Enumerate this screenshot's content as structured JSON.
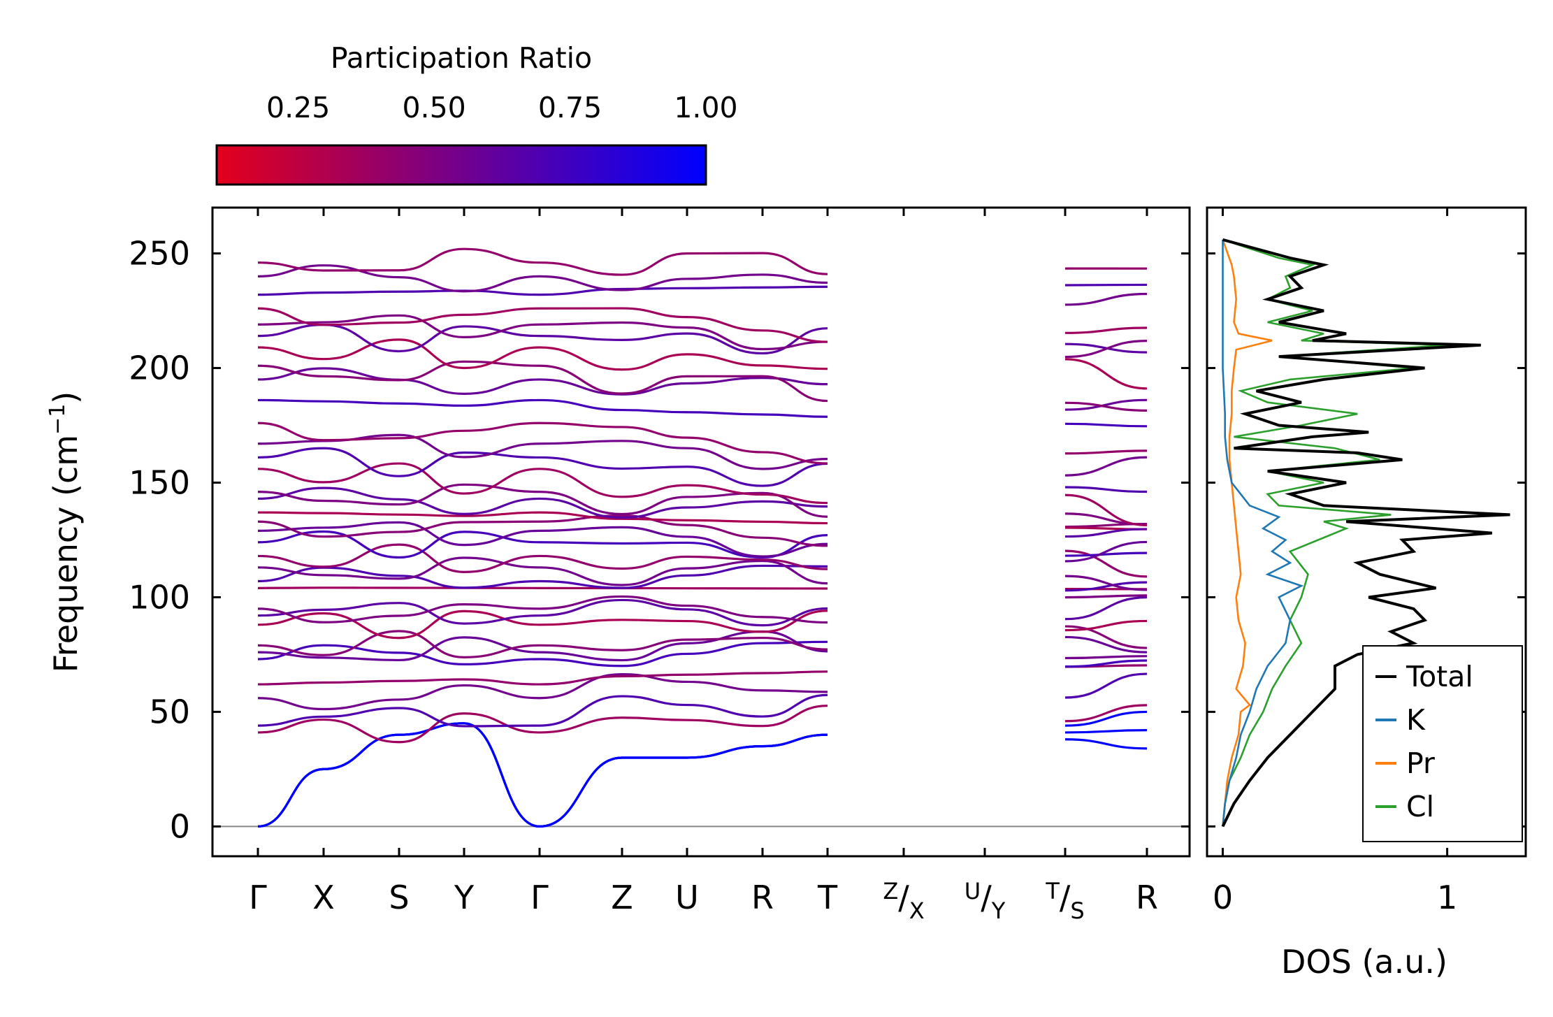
{
  "chart_data": [
    {
      "type": "line",
      "subtype": "phonon-band-structure",
      "ylabel": "Frequency (cm$^{-1}$)",
      "ylabel_text": "Frequency (cm",
      "ylabel_unit_sup": "−1",
      "ylabel_close": ")",
      "ylim": [
        -13,
        270
      ],
      "yticks": [
        0,
        50,
        100,
        150,
        200,
        250
      ],
      "ytick_labels": [
        "0",
        "50",
        "100",
        "150",
        "200",
        "250"
      ],
      "path_labels": [
        {
          "main": "Γ"
        },
        {
          "main": "X"
        },
        {
          "main": "S"
        },
        {
          "main": "Y"
        },
        {
          "main": "Γ"
        },
        {
          "main": "Z"
        },
        {
          "main": "U"
        },
        {
          "main": "R"
        },
        {
          "main": "T"
        },
        {
          "sup": "Z",
          "slash": "/",
          "sub": "X"
        },
        {
          "sup": "U",
          "slash": "/",
          "sub": "Y"
        },
        {
          "sup": "T",
          "slash": "/",
          "sub": "S"
        },
        {
          "main": "R"
        }
      ],
      "segment_breaks_after": [
        9,
        10,
        11
      ],
      "colorbar": {
        "title": "Participation Ratio",
        "min": 0.1,
        "max": 1.0,
        "ticks": [
          "0.25",
          "0.50",
          "0.75",
          "1.00"
        ],
        "tick_values": [
          0.25,
          0.5,
          0.75,
          1.0
        ],
        "colormap": [
          "#e3001b",
          "#0000ff"
        ]
      },
      "band_frequencies_at_gamma": [
        0,
        0,
        0,
        41,
        44,
        56,
        62,
        73,
        76,
        79,
        88,
        92,
        95,
        104,
        107,
        113,
        118,
        124,
        129,
        133,
        137,
        143,
        146,
        156,
        161,
        167,
        176,
        186,
        195,
        201,
        209,
        214,
        219,
        226,
        232,
        240,
        246
      ],
      "band_frequencies_at_R": [
        34,
        51,
        61,
        69,
        76,
        82,
        89,
        95,
        101,
        109,
        114,
        120,
        126,
        131,
        137,
        148,
        158,
        170,
        186,
        197,
        210,
        212,
        231,
        247
      ]
    },
    {
      "type": "line",
      "subtype": "density-of-states",
      "xlabel": "DOS (a.u.)",
      "xlim": [
        -0.07,
        1.35
      ],
      "xticks": [
        0,
        1
      ],
      "xtick_labels": [
        "0",
        "1"
      ],
      "ylim": [
        -13,
        270
      ],
      "series": [
        {
          "name": "Total",
          "color": "#000000",
          "y": [
            0,
            10,
            20,
            30,
            40,
            50,
            60,
            70,
            75,
            80,
            85,
            90,
            95,
            100,
            104,
            110,
            115,
            120,
            125,
            128,
            133,
            136,
            140,
            145,
            150,
            155,
            160,
            163,
            165,
            170,
            172,
            175,
            180,
            185,
            190,
            195,
            200,
            205,
            210,
            212,
            215,
            220,
            225,
            230,
            235,
            240,
            245,
            248,
            256
          ],
          "x": [
            0.0,
            0.05,
            0.12,
            0.2,
            0.3,
            0.4,
            0.5,
            0.5,
            0.6,
            0.85,
            0.75,
            0.9,
            0.85,
            0.65,
            0.95,
            0.7,
            0.6,
            0.85,
            0.8,
            1.2,
            0.55,
            1.28,
            0.45,
            0.3,
            0.55,
            0.2,
            0.8,
            0.6,
            0.05,
            0.4,
            0.65,
            0.25,
            0.1,
            0.35,
            0.15,
            0.45,
            0.9,
            0.25,
            1.15,
            0.4,
            0.55,
            0.25,
            0.45,
            0.2,
            0.35,
            0.3,
            0.45,
            0.3,
            0.0
          ]
        },
        {
          "name": "K",
          "color": "#1f77b4",
          "y": [
            0,
            10,
            20,
            30,
            40,
            50,
            60,
            70,
            80,
            90,
            100,
            105,
            110,
            115,
            120,
            125,
            130,
            135,
            140,
            145,
            150,
            160,
            170,
            180,
            200,
            220,
            240,
            256
          ],
          "x": [
            0.0,
            0.01,
            0.03,
            0.06,
            0.08,
            0.12,
            0.15,
            0.2,
            0.28,
            0.3,
            0.25,
            0.35,
            0.2,
            0.3,
            0.22,
            0.28,
            0.18,
            0.25,
            0.12,
            0.08,
            0.04,
            0.02,
            0.01,
            0.01,
            0.0,
            0.0,
            0.0,
            0.0
          ]
        },
        {
          "name": "Pr",
          "color": "#ff7f0e",
          "y": [
            0,
            20,
            30,
            40,
            50,
            53,
            60,
            70,
            80,
            90,
            100,
            110,
            120,
            130,
            140,
            150,
            160,
            170,
            180,
            190,
            200,
            208,
            212,
            215,
            220,
            230,
            240,
            245,
            256
          ],
          "x": [
            0.0,
            0.02,
            0.04,
            0.07,
            0.08,
            0.12,
            0.06,
            0.09,
            0.1,
            0.07,
            0.06,
            0.08,
            0.07,
            0.06,
            0.05,
            0.04,
            0.03,
            0.03,
            0.04,
            0.04,
            0.05,
            0.06,
            0.22,
            0.07,
            0.05,
            0.06,
            0.05,
            0.04,
            0.0
          ]
        },
        {
          "name": "Cl",
          "color": "#2ca02c",
          "y": [
            0,
            10,
            20,
            30,
            40,
            50,
            60,
            70,
            80,
            90,
            100,
            110,
            120,
            130,
            133,
            136,
            140,
            145,
            150,
            155,
            160,
            165,
            170,
            175,
            180,
            185,
            190,
            195,
            200,
            205,
            210,
            212,
            215,
            220,
            225,
            230,
            235,
            240,
            245,
            248,
            256
          ],
          "x": [
            0.0,
            0.01,
            0.03,
            0.08,
            0.12,
            0.18,
            0.22,
            0.28,
            0.35,
            0.3,
            0.35,
            0.38,
            0.3,
            0.55,
            0.45,
            0.75,
            0.25,
            0.2,
            0.45,
            0.2,
            0.7,
            0.5,
            0.05,
            0.35,
            0.6,
            0.2,
            0.08,
            0.3,
            0.85,
            0.25,
            1.0,
            0.35,
            0.45,
            0.2,
            0.4,
            0.2,
            0.3,
            0.28,
            0.4,
            0.25,
            0.0
          ]
        }
      ],
      "legend": {
        "position": "lower-right",
        "entries": [
          "Total",
          "K",
          "Pr",
          "Cl"
        ]
      }
    }
  ]
}
